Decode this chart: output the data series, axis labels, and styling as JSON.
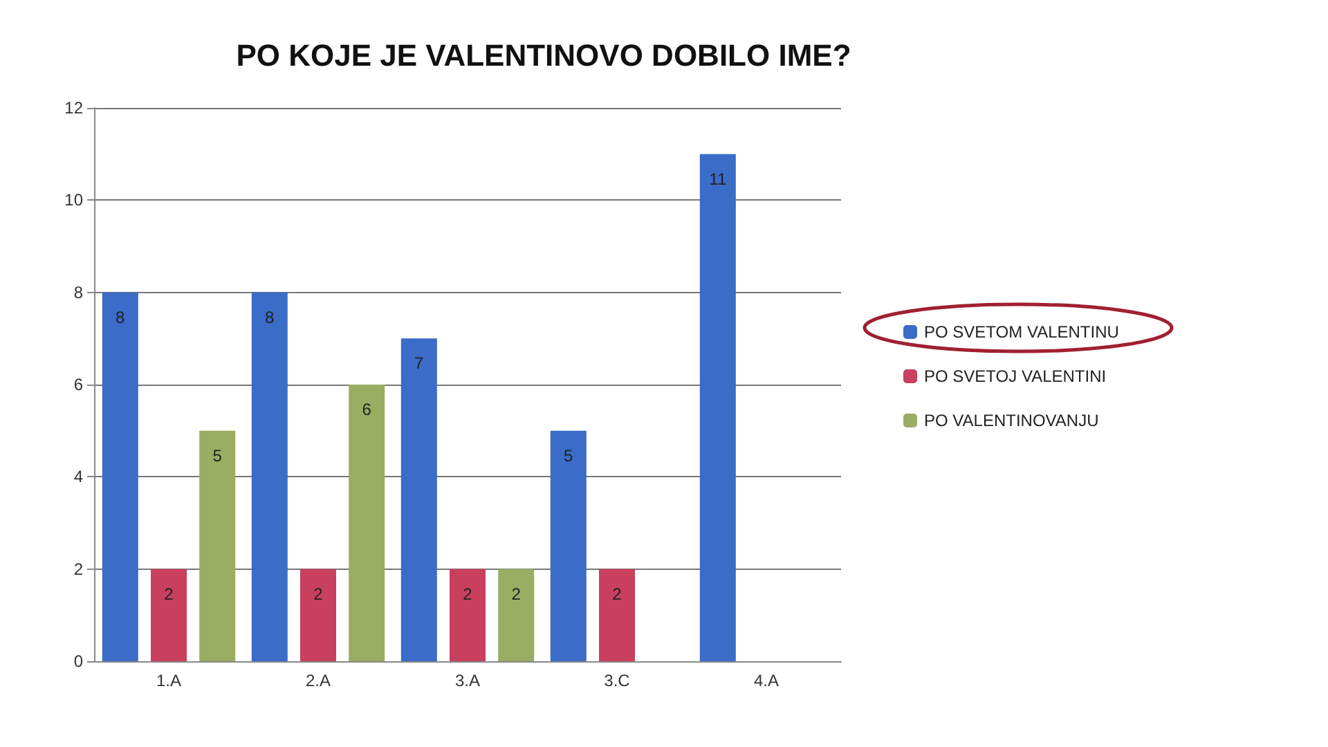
{
  "chart_data": {
    "type": "bar",
    "title": "PO KOJE JE VALENTINOVO DOBILO IME?",
    "categories": [
      "1.A",
      "2.A",
      "3.A",
      "3.C",
      "4.A"
    ],
    "series": [
      {
        "name": "PO SVETOM VALENTINU",
        "color": "#3a6cc8",
        "values": [
          8,
          8,
          7,
          5,
          11
        ]
      },
      {
        "name": "PO SVETOJ VALENTINI",
        "color": "#c8405e",
        "values": [
          2,
          2,
          2,
          2,
          null
        ]
      },
      {
        "name": "PO VALENTINOVANJU",
        "color": "#9bad62",
        "values": [
          5,
          6,
          2,
          null,
          null
        ]
      }
    ],
    "ylim": [
      0,
      12
    ],
    "yticks": [
      0,
      2,
      4,
      6,
      8,
      10,
      12
    ],
    "grid": "y",
    "legend": "right",
    "data_labels": true
  }
}
